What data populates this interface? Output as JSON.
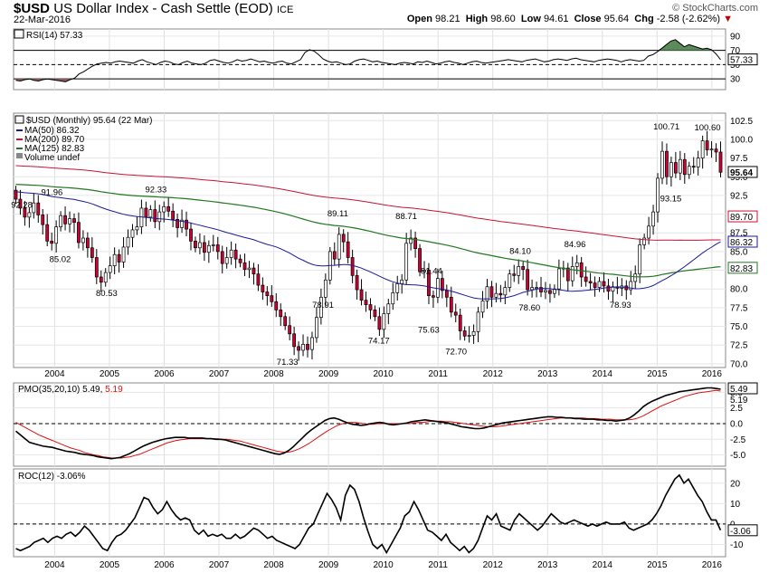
{
  "header": {
    "symbol": "$USD",
    "name": "US Dollar Index - Cash Settle (EOD)",
    "exchange": "ICE",
    "date": "22-Mar-2016",
    "open_label": "Open",
    "open": "98.21",
    "high_label": "High",
    "high": "98.60",
    "low_label": "Low",
    "low": "94.61",
    "close_label": "Close",
    "close": "95.64",
    "chg_label": "Chg",
    "chg": "-2.58 (-2.62%)",
    "brand": "© StockCharts.com"
  },
  "colors": {
    "up": "#ffffff",
    "down": "#cc0033",
    "ma50": "#1a1a99",
    "ma200": "#cc1133",
    "ma125": "#227722",
    "pmo": "#000000",
    "pmo_signal": "#dd1111",
    "rsi": "#000000",
    "rsi_fill": "#5a8a5a",
    "rsi_low_fill": "#9a6060"
  },
  "chart_data": [
    {
      "type": "line",
      "name": "rsi",
      "title": "RSI(14) 57.33",
      "ylim": [
        15,
        100
      ],
      "yticks": [
        90,
        70,
        50,
        30
      ],
      "ref_lines": [
        70,
        30
      ],
      "last_label": "57.33",
      "series": [
        {
          "name": "RSI(14)",
          "values": [
            28,
            27,
            29,
            30,
            28,
            27,
            29,
            30,
            29,
            28,
            27,
            26,
            29,
            31,
            37,
            40,
            44,
            48,
            51,
            52,
            53,
            52,
            54,
            55,
            54,
            53,
            52,
            55,
            57,
            54,
            52,
            50,
            53,
            55,
            54,
            51,
            50,
            53,
            55,
            52,
            51,
            50,
            52,
            56,
            57,
            55,
            53,
            52,
            54,
            57,
            55,
            56,
            58,
            56,
            54,
            55,
            53,
            52,
            54,
            55,
            52,
            51,
            54,
            57,
            67,
            71,
            69,
            64,
            58,
            55,
            53,
            54,
            52,
            50,
            51,
            55,
            57,
            58,
            56,
            54,
            55,
            53,
            52,
            51,
            50,
            52,
            53,
            52,
            51,
            54,
            53,
            55,
            53,
            51,
            52,
            54,
            55,
            53,
            52,
            50,
            52,
            54,
            55,
            53,
            52,
            53,
            54,
            55,
            56,
            57,
            56,
            55,
            54,
            56,
            57,
            58,
            56,
            54,
            55,
            57,
            58,
            57,
            56,
            58,
            59,
            57,
            56,
            55,
            54,
            56,
            57,
            58,
            57,
            56,
            54,
            56,
            57,
            56,
            55,
            56,
            62,
            64,
            68,
            73,
            78,
            83,
            85,
            80,
            75,
            78,
            76,
            74,
            72,
            73,
            71,
            65,
            57
          ]
        }
      ]
    },
    {
      "type": "candlestick",
      "name": "price",
      "title": "$USD (Monthly) 95.64 (22 Mar)",
      "legend": [
        "MA(50) 86.32",
        "MA(200) 89.70",
        "MA(125) 82.83",
        "Volume undef"
      ],
      "x_ticks": [
        "2004",
        "2005",
        "2006",
        "2007",
        "2008",
        "2009",
        "2010",
        "2011",
        "2012",
        "2013",
        "2014",
        "2015",
        "2016"
      ],
      "x_range": [
        2003.25,
        2016.25
      ],
      "ylim": [
        69.5,
        103.5
      ],
      "yticks": [
        102.5,
        100.0,
        97.5,
        95.0,
        92.5,
        90.0,
        87.5,
        85.0,
        82.5,
        80.0,
        77.5,
        75.0,
        72.5,
        70.0
      ],
      "last_labels": {
        "close": "95.64",
        "ma200": "89.70",
        "ma50": "86.32",
        "ma125": "82.83"
      },
      "annotations": [
        {
          "text": "92.28",
          "x": 2003.4,
          "y": 92.28,
          "pos": "below"
        },
        {
          "text": "91.96",
          "x": 2003.95,
          "y": 91.96,
          "pos": "above"
        },
        {
          "text": "85.02",
          "x": 2004.1,
          "y": 85.02,
          "pos": "below"
        },
        {
          "text": "80.53",
          "x": 2004.95,
          "y": 80.53,
          "pos": "below"
        },
        {
          "text": "92.33",
          "x": 2005.85,
          "y": 92.33,
          "pos": "above"
        },
        {
          "text": "71.33",
          "x": 2008.25,
          "y": 71.33,
          "pos": "below"
        },
        {
          "text": "78.91",
          "x": 2008.9,
          "y": 78.91,
          "pos": "below"
        },
        {
          "text": "89.11",
          "x": 2009.17,
          "y": 89.11,
          "pos": "above"
        },
        {
          "text": "74.17",
          "x": 2009.92,
          "y": 74.17,
          "pos": "below"
        },
        {
          "text": "88.71",
          "x": 2010.42,
          "y": 88.71,
          "pos": "above"
        },
        {
          "text": "81.44",
          "x": 2010.88,
          "y": 81.44,
          "pos": "above"
        },
        {
          "text": "75.63",
          "x": 2010.83,
          "y": 75.63,
          "pos": "below"
        },
        {
          "text": "72.70",
          "x": 2011.33,
          "y": 72.7,
          "pos": "below"
        },
        {
          "text": "84.10",
          "x": 2012.5,
          "y": 84.1,
          "pos": "above"
        },
        {
          "text": "78.60",
          "x": 2012.67,
          "y": 78.6,
          "pos": "below"
        },
        {
          "text": "84.96",
          "x": 2013.5,
          "y": 84.96,
          "pos": "above"
        },
        {
          "text": "78.93",
          "x": 2014.33,
          "y": 78.93,
          "pos": "below"
        },
        {
          "text": "100.71",
          "x": 2015.17,
          "y": 100.71,
          "pos": "above"
        },
        {
          "text": "93.15",
          "x": 2015.25,
          "y": 93.15,
          "pos": "below"
        },
        {
          "text": "100.60",
          "x": 2015.92,
          "y": 100.6,
          "pos": "above"
        }
      ],
      "closes": [
        92.0,
        90.8,
        89.6,
        90.2,
        91.5,
        89.9,
        88.6,
        86.4,
        86.1,
        88.3,
        89.8,
        88.7,
        89.4,
        88.9,
        86.2,
        86.8,
        85.5,
        84.2,
        81.6,
        80.9,
        82.2,
        83.1,
        84.6,
        83.6,
        85.6,
        86.9,
        87.9,
        88.3,
        90.8,
        89.6,
        90.6,
        89.0,
        90.3,
        91.0,
        90.4,
        89.3,
        88.2,
        89.2,
        88.0,
        86.4,
        85.5,
        86.2,
        84.9,
        85.8,
        85.9,
        85.0,
        83.4,
        84.2,
        85.2,
        84.0,
        83.5,
        82.6,
        82.8,
        82.0,
        80.5,
        79.6,
        79.1,
        78.3,
        77.2,
        76.3,
        75.1,
        74.0,
        72.3,
        71.8,
        72.6,
        71.9,
        73.5,
        76.2,
        78.9,
        81.2,
        85.0,
        84.0,
        87.3,
        86.3,
        84.2,
        81.8,
        79.9,
        78.5,
        77.9,
        77.2,
        76.3,
        74.6,
        76.7,
        78.0,
        79.5,
        80.7,
        81.2,
        86.1,
        86.8,
        85.4,
        82.3,
        82.5,
        79.1,
        78.9,
        81.4,
        79.8,
        78.9,
        76.9,
        76.5,
        74.4,
        73.7,
        73.8,
        74.3,
        76.9,
        78.4,
        80.3,
        78.9,
        79.4,
        79.2,
        80.2,
        82.0,
        81.8,
        83.0,
        82.6,
        79.9,
        80.2,
        80.2,
        79.6,
        79.8,
        79.4,
        80.0,
        82.7,
        82.8,
        81.1,
        83.0,
        83.5,
        81.6,
        81.0,
        80.8,
        80.2,
        81.0,
        80.4,
        79.7,
        80.3,
        80.1,
        80.4,
        79.9,
        81.0,
        82.0,
        85.9,
        86.8,
        88.4,
        90.3,
        94.8,
        98.4,
        95.0,
        96.9,
        95.5,
        97.3,
        95.3,
        96.4,
        96.3,
        97.5,
        99.8,
        98.6,
        98.7,
        98.3,
        95.6
      ]
    },
    {
      "type": "line",
      "name": "pmo",
      "title": "PMO(35,20,10) 5.49, 5.19",
      "ylim": [
        -6.8,
        6.5
      ],
      "yticks": [
        5.0,
        2.5,
        0.0,
        -2.5,
        -5.0
      ],
      "zero_line": 0.0,
      "last_labels": [
        "5.49",
        "5.19"
      ],
      "series": [
        {
          "name": "PMO",
          "values": [
            -1.2,
            -1.8,
            -2.4,
            -3.0,
            -3.2,
            -3.4,
            -3.6,
            -3.7,
            -3.8,
            -4.0,
            -4.2,
            -4.4,
            -4.5,
            -4.6,
            -4.8,
            -4.9,
            -5.0,
            -5.1,
            -5.3,
            -5.4,
            -5.5,
            -5.6,
            -5.5,
            -5.4,
            -5.1,
            -4.8,
            -4.4,
            -4.0,
            -3.6,
            -3.3,
            -3.0,
            -2.8,
            -2.6,
            -2.4,
            -2.3,
            -2.2,
            -2.2,
            -2.2,
            -2.3,
            -2.3,
            -2.3,
            -2.3,
            -2.4,
            -2.4,
            -2.5,
            -2.5,
            -2.6,
            -2.8,
            -3.0,
            -3.2,
            -3.4,
            -3.6,
            -3.8,
            -4.0,
            -4.2,
            -4.4,
            -4.6,
            -4.8,
            -4.9,
            -4.7,
            -4.3,
            -3.7,
            -3.0,
            -2.3,
            -1.6,
            -1.0,
            -0.5,
            0.0,
            0.5,
            0.8,
            0.9,
            0.7,
            0.4,
            0.1,
            -0.1,
            -0.2,
            -0.3,
            -0.2,
            0.0,
            0.1,
            0.2,
            0.1,
            -0.1,
            -0.2,
            -0.1,
            0.0,
            0.1,
            0.3,
            0.4,
            0.5,
            0.6,
            0.5,
            0.4,
            0.3,
            0.2,
            0.1,
            -0.1,
            -0.3,
            -0.5,
            -0.6,
            -0.7,
            -0.8,
            -0.8,
            -0.7,
            -0.5,
            -0.3,
            -0.1,
            0.1,
            0.2,
            0.3,
            0.4,
            0.5,
            0.6,
            0.7,
            0.8,
            0.9,
            1.0,
            1.1,
            1.1,
            1.0,
            1.0,
            0.9,
            0.9,
            0.8,
            0.8,
            0.7,
            0.7,
            0.7,
            0.6,
            0.6,
            0.5,
            0.5,
            0.4,
            0.5,
            0.6,
            0.9,
            1.4,
            2.0,
            2.7,
            3.2,
            3.6,
            3.9,
            4.2,
            4.5,
            4.7,
            4.9,
            5.1,
            5.2,
            5.3,
            5.4,
            5.5,
            5.6,
            5.7,
            5.7,
            5.6,
            5.5
          ]
        },
        {
          "name": "Signal",
          "values": [
            0.2,
            -0.2,
            -0.6,
            -1.0,
            -1.4,
            -1.8,
            -2.1,
            -2.4,
            -2.7,
            -3.0,
            -3.3,
            -3.6,
            -3.9,
            -4.1,
            -4.3,
            -4.6,
            -4.8,
            -5.0,
            -5.1,
            -5.3,
            -5.4,
            -5.5,
            -5.5,
            -5.5,
            -5.4,
            -5.3,
            -5.1,
            -4.9,
            -4.6,
            -4.3,
            -4.0,
            -3.7,
            -3.4,
            -3.1,
            -2.9,
            -2.7,
            -2.6,
            -2.5,
            -2.4,
            -2.4,
            -2.4,
            -2.4,
            -2.4,
            -2.4,
            -2.4,
            -2.5,
            -2.5,
            -2.6,
            -2.7,
            -2.8,
            -3.0,
            -3.2,
            -3.4,
            -3.6,
            -3.8,
            -4.0,
            -4.2,
            -4.4,
            -4.5,
            -4.6,
            -4.5,
            -4.3,
            -4.0,
            -3.6,
            -3.2,
            -2.7,
            -2.2,
            -1.7,
            -1.2,
            -0.8,
            -0.4,
            -0.1,
            0.1,
            0.2,
            0.2,
            0.1,
            0.0,
            -0.1,
            -0.1,
            0.0,
            0.0,
            0.0,
            0.0,
            0.0,
            0.0,
            0.0,
            0.0,
            0.1,
            0.2,
            0.2,
            0.3,
            0.4,
            0.4,
            0.4,
            0.3,
            0.3,
            0.2,
            0.1,
            0.0,
            -0.1,
            -0.2,
            -0.3,
            -0.4,
            -0.5,
            -0.5,
            -0.5,
            -0.4,
            -0.3,
            -0.2,
            -0.1,
            0.0,
            0.1,
            0.2,
            0.3,
            0.4,
            0.5,
            0.6,
            0.7,
            0.8,
            0.9,
            0.9,
            0.9,
            0.9,
            0.9,
            0.9,
            0.8,
            0.8,
            0.8,
            0.7,
            0.7,
            0.7,
            0.6,
            0.6,
            0.6,
            0.6,
            0.7,
            0.9,
            1.2,
            1.6,
            2.0,
            2.4,
            2.8,
            3.1,
            3.4,
            3.7,
            4.0,
            4.3,
            4.5,
            4.7,
            4.9,
            5.0,
            5.1,
            5.2,
            5.3,
            5.2
          ]
        }
      ]
    },
    {
      "type": "line",
      "name": "roc",
      "title": "ROC(12) -3.06%",
      "ylim": [
        -16,
        27
      ],
      "yticks": [
        20,
        10,
        0,
        -10
      ],
      "zero_line": 0,
      "last_label": "-3.06",
      "series": [
        {
          "name": "ROC(12)",
          "values": [
            -12,
            -13,
            -12,
            -11,
            -9,
            -8,
            -7,
            -9,
            -7,
            -6,
            -7,
            -5,
            -4,
            -6,
            -4,
            -1,
            -3,
            -6,
            -9,
            -12,
            -13,
            -9,
            -6,
            -5,
            -3,
            0,
            3,
            8,
            13,
            12,
            8,
            5,
            7,
            11,
            7,
            4,
            2,
            3,
            2,
            -3,
            -5,
            -3,
            -6,
            -5,
            -6,
            -5,
            -7,
            -7,
            -5,
            -7,
            -6,
            -4,
            -2,
            -3,
            -5,
            -7,
            -6,
            -8,
            -9,
            -10,
            -11,
            -12,
            -10,
            -6,
            -2,
            0,
            5,
            10,
            15,
            12,
            8,
            2,
            14,
            19,
            17,
            11,
            3,
            -4,
            -10,
            -12,
            -10,
            -14,
            -10,
            -6,
            -2,
            4,
            6,
            11,
            7,
            2,
            -3,
            -4,
            -6,
            -8,
            -5,
            -9,
            -11,
            -13,
            -11,
            -14,
            -12,
            -8,
            -2,
            4,
            2,
            5,
            -1,
            -2,
            -3,
            2,
            5,
            3,
            1,
            -1,
            -3,
            -1,
            2,
            5,
            3,
            1,
            0,
            1,
            2,
            1,
            0,
            -1,
            0,
            -1,
            0,
            1,
            0,
            0,
            0,
            1,
            -2,
            -3,
            -2,
            -1,
            0,
            2,
            5,
            9,
            14,
            18,
            22,
            24,
            20,
            22,
            18,
            14,
            11,
            6,
            2,
            2,
            -3
          ]
        }
      ]
    }
  ]
}
